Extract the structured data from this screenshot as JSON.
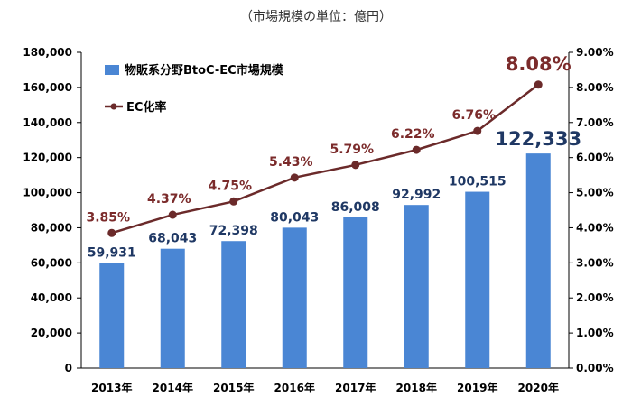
{
  "unit_note": "（市場規模の単位：億円）",
  "chart_data": {
    "type": "bar",
    "categories": [
      "2013年",
      "2014年",
      "2015年",
      "2016年",
      "2017年",
      "2018年",
      "2019年",
      "2020年"
    ],
    "series": [
      {
        "name": "物販系分野BtoC-EC市場規模",
        "kind": "bar",
        "axis": "left",
        "values": [
          59931,
          68043,
          72398,
          80043,
          86008,
          92992,
          100515,
          122333
        ],
        "labels": [
          "59,931",
          "68,043",
          "72,398",
          "80,043",
          "86,008",
          "92,992",
          "100,515",
          "122,333"
        ],
        "color": "#4a86d4"
      },
      {
        "name": "EC化率",
        "kind": "line",
        "axis": "right",
        "values": [
          3.85,
          4.37,
          4.75,
          5.43,
          5.79,
          6.22,
          6.76,
          8.08
        ],
        "labels": [
          "3.85%",
          "4.37%",
          "4.75%",
          "5.43%",
          "5.79%",
          "6.22%",
          "6.76%",
          "8.08%"
        ],
        "color": "#6b2a2a"
      }
    ],
    "y_left": {
      "lim": [
        0,
        180000
      ],
      "ticks": [
        "0",
        "20,000",
        "40,000",
        "60,000",
        "80,000",
        "100,000",
        "120,000",
        "140,000",
        "160,000",
        "180,000"
      ]
    },
    "y_right": {
      "lim": [
        0,
        9
      ],
      "ticks": [
        "0.00%",
        "1.00%",
        "2.00%",
        "3.00%",
        "4.00%",
        "5.00%",
        "6.00%",
        "7.00%",
        "8.00%",
        "9.00%"
      ]
    },
    "legend": "top-left",
    "grid": false,
    "bar_label_color": "#1f3864",
    "line_label_color": "#7b2b2b"
  }
}
